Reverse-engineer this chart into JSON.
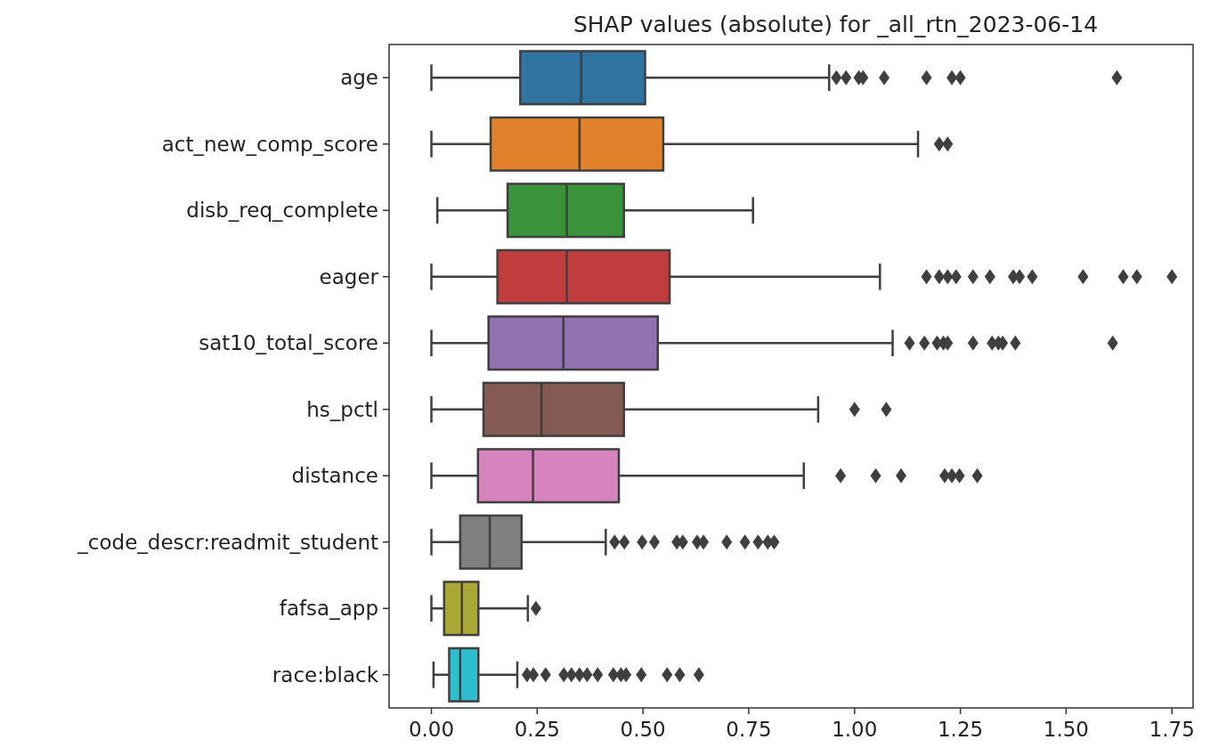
{
  "chart_data": {
    "type": "box",
    "orientation": "horizontal",
    "title": "SHAP values (absolute) for _all_rtn_2023-06-14",
    "categories": [
      "age",
      "act_new_comp_score",
      "disb_req_complete",
      "eager",
      "sat10_total_score",
      "hs_pctl",
      "distance",
      "_code_descr:readmit_student",
      "fafsa_app",
      "race:black"
    ],
    "colors": [
      "#3274a1",
      "#e1812c",
      "#3a923a",
      "#c03d3e",
      "#9372b2",
      "#845b53",
      "#d684bd",
      "#7f7f7f",
      "#a9aa35",
      "#2ebece"
    ],
    "boxes": [
      {
        "low": 0.0,
        "q1": 0.21,
        "median": 0.354,
        "q3": 0.505,
        "high": 0.94,
        "outliers": [
          0.957,
          0.98,
          1.01,
          1.02,
          1.07,
          1.17,
          1.23,
          1.25,
          1.62
        ]
      },
      {
        "low": 0.0,
        "q1": 0.14,
        "median": 0.35,
        "q3": 0.548,
        "high": 1.15,
        "outliers": [
          1.2,
          1.22
        ]
      },
      {
        "low": 0.014,
        "q1": 0.18,
        "median": 0.32,
        "q3": 0.455,
        "high": 0.76
      },
      {
        "low": 0.0,
        "q1": 0.156,
        "median": 0.32,
        "q3": 0.563,
        "high": 1.06,
        "outliers": [
          1.17,
          1.2,
          1.22,
          1.24,
          1.28,
          1.32,
          1.375,
          1.39,
          1.42,
          1.54,
          1.635,
          1.667,
          1.75
        ]
      },
      {
        "low": 0.0,
        "q1": 0.135,
        "median": 0.312,
        "q3": 0.535,
        "high": 1.09,
        "outliers": [
          1.13,
          1.165,
          1.195,
          1.21,
          1.22,
          1.28,
          1.325,
          1.34,
          1.35,
          1.38,
          1.61
        ]
      },
      {
        "low": 0.0,
        "q1": 0.123,
        "median": 0.26,
        "q3": 0.455,
        "high": 0.914,
        "outliers": [
          1.0,
          1.075
        ]
      },
      {
        "low": 0.0,
        "q1": 0.11,
        "median": 0.24,
        "q3": 0.443,
        "high": 0.88,
        "outliers": [
          0.967,
          1.05,
          1.11,
          1.213,
          1.23,
          1.248,
          1.29
        ]
      },
      {
        "low": 0.0,
        "q1": 0.068,
        "median": 0.138,
        "q3": 0.213,
        "high": 0.412,
        "outliers": [
          0.433,
          0.456,
          0.498,
          0.527,
          0.58,
          0.594,
          0.628,
          0.643,
          0.698,
          0.741,
          0.772,
          0.795,
          0.81
        ]
      },
      {
        "low": 0.0,
        "q1": 0.03,
        "median": 0.072,
        "q3": 0.111,
        "high": 0.228,
        "outliers": [
          0.247
        ]
      },
      {
        "low": 0.005,
        "q1": 0.042,
        "median": 0.068,
        "q3": 0.111,
        "high": 0.203,
        "outliers": [
          0.226,
          0.241,
          0.27,
          0.313,
          0.331,
          0.35,
          0.368,
          0.393,
          0.43,
          0.448,
          0.46,
          0.496,
          0.557,
          0.587,
          0.632
        ]
      }
    ],
    "xlim": [
      -0.1,
      1.8
    ],
    "xticks": [
      {
        "value": 0,
        "label": "0.00"
      },
      {
        "value": 0.25,
        "label": "0.25"
      },
      {
        "value": 0.5,
        "label": "0.50"
      },
      {
        "value": 0.75,
        "label": "0.75"
      },
      {
        "value": 1,
        "label": "1.00"
      },
      {
        "value": 1.25,
        "label": "1.25"
      },
      {
        "value": 1.5,
        "label": "1.50"
      },
      {
        "value": 1.75,
        "label": "1.75"
      }
    ],
    "marker": "diamond",
    "grid": false
  }
}
